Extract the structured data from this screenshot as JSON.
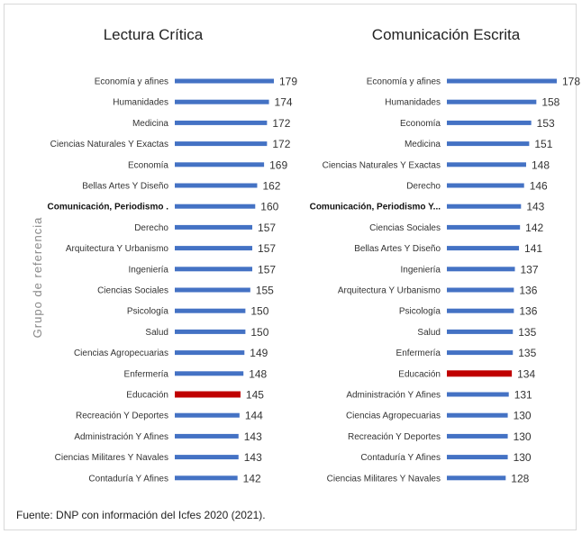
{
  "y_axis_label": "Grupo de referencia",
  "source": "Fuente: DNP con información del Icfes 2020 (2021).",
  "colors": {
    "bar": "#4472C4",
    "highlight": "#C00000"
  },
  "chart_data": [
    {
      "type": "bar",
      "orientation": "horizontal",
      "title": "Lectura Crítica",
      "highlight": "Educación",
      "categories": [
        "Economía y afines",
        "Humanidades",
        "Medicina",
        "Ciencias Naturales Y Exactas",
        "Economía",
        "Bellas Artes Y Diseño",
        "Comunicación, Periodismo .",
        "Derecho",
        "Arquitectura Y Urbanismo",
        "Ingeniería",
        "Ciencias Sociales",
        "Psicología",
        "Salud",
        "Ciencias Agropecuarias",
        "Enfermería",
        "Educación",
        "Recreación Y Deportes",
        "Administración Y Afines",
        "Ciencias Militares Y Navales",
        "Contaduría Y Afines"
      ],
      "values": [
        179,
        174,
        172,
        172,
        169,
        162,
        160,
        157,
        157,
        157,
        155,
        150,
        150,
        149,
        148,
        145,
        144,
        143,
        143,
        142
      ]
    },
    {
      "type": "bar",
      "orientation": "horizontal",
      "title": "Comunicación Escrita",
      "highlight": "Educación",
      "categories": [
        "Economía y afines",
        "Humanidades",
        "Economía",
        "Medicina",
        "Ciencias Naturales Y Exactas",
        "Derecho",
        "Comunicación, Periodismo Y...",
        "Ciencias Sociales",
        "Bellas Artes Y Diseño",
        "Ingeniería",
        "Arquitectura Y Urbanismo",
        "Psicología",
        "Salud",
        "Enfermería",
        "Educación",
        "Administración Y Afines",
        "Ciencias Agropecuarias",
        "Recreación Y Deportes",
        "Contaduría Y Afines",
        "Ciencias Militares Y Navales"
      ],
      "values": [
        178,
        158,
        153,
        151,
        148,
        146,
        143,
        142,
        141,
        137,
        136,
        136,
        135,
        135,
        134,
        131,
        130,
        130,
        130,
        128
      ]
    }
  ]
}
